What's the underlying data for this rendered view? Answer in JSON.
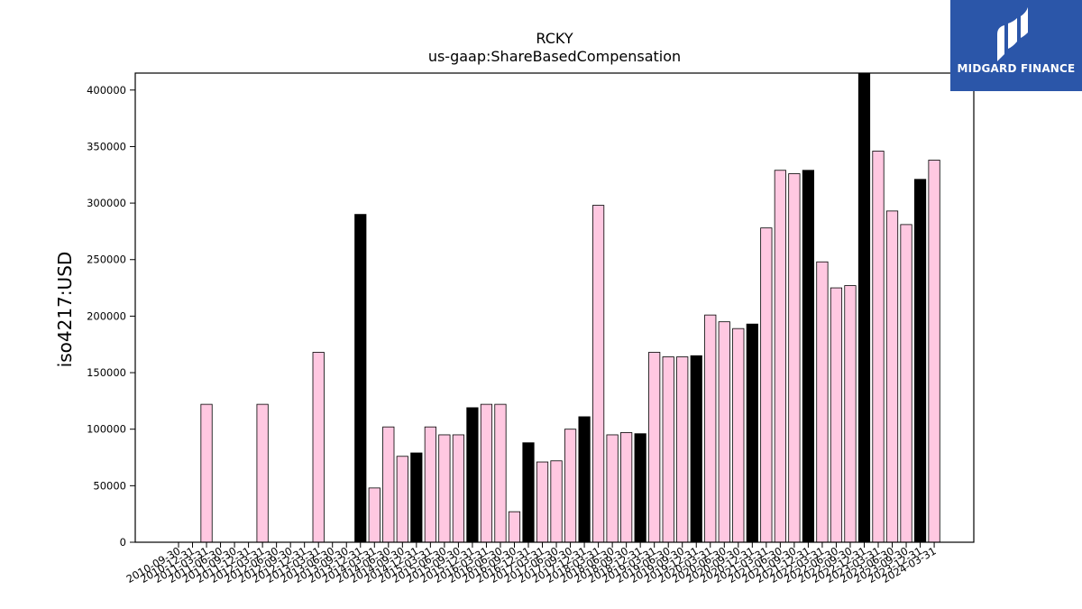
{
  "chart_data": {
    "type": "bar",
    "title": "RCKY",
    "subtitle": "us-gaap:ShareBasedCompensation",
    "xlabel": "",
    "ylabel": "iso4217:USD",
    "ylim": [
      0,
      415000
    ],
    "yticks": [
      0,
      50000,
      100000,
      150000,
      200000,
      250000,
      300000,
      350000,
      400000
    ],
    "grid": false,
    "colors": {
      "quarter": "#ffc8e1",
      "fiscal_year_end": "#000000",
      "edge": "#000000"
    },
    "bars": [
      {
        "date": "2010-09-30",
        "value": 0,
        "annual": false
      },
      {
        "date": "2010-12-31",
        "value": 0,
        "annual": false
      },
      {
        "date": "2011-03-31",
        "value": 122000,
        "annual": false
      },
      {
        "date": "2011-06-30",
        "value": 0,
        "annual": false
      },
      {
        "date": "2011-09-30",
        "value": 0,
        "annual": false
      },
      {
        "date": "2011-12-31",
        "value": 0,
        "annual": false
      },
      {
        "date": "2012-03-31",
        "value": 122000,
        "annual": false
      },
      {
        "date": "2012-06-30",
        "value": 0,
        "annual": false
      },
      {
        "date": "2012-09-30",
        "value": 0,
        "annual": false
      },
      {
        "date": "2012-12-31",
        "value": 0,
        "annual": false
      },
      {
        "date": "2013-03-31",
        "value": 168000,
        "annual": false
      },
      {
        "date": "2013-06-30",
        "value": 0,
        "annual": false
      },
      {
        "date": "2013-09-30",
        "value": 0,
        "annual": false
      },
      {
        "date": "2013-12-31",
        "value": 290000,
        "annual": true
      },
      {
        "date": "2014-03-31",
        "value": 48000,
        "annual": false
      },
      {
        "date": "2014-06-30",
        "value": 102000,
        "annual": false
      },
      {
        "date": "2014-09-30",
        "value": 76000,
        "annual": false
      },
      {
        "date": "2014-12-31",
        "value": 79000,
        "annual": true
      },
      {
        "date": "2015-03-31",
        "value": 102000,
        "annual": false
      },
      {
        "date": "2015-06-30",
        "value": 95000,
        "annual": false
      },
      {
        "date": "2015-09-30",
        "value": 95000,
        "annual": false
      },
      {
        "date": "2015-12-31",
        "value": 119000,
        "annual": true
      },
      {
        "date": "2016-03-31",
        "value": 122000,
        "annual": false
      },
      {
        "date": "2016-06-30",
        "value": 122000,
        "annual": false
      },
      {
        "date": "2016-09-30",
        "value": 27000,
        "annual": false
      },
      {
        "date": "2016-12-31",
        "value": 88000,
        "annual": true
      },
      {
        "date": "2017-03-31",
        "value": 71000,
        "annual": false
      },
      {
        "date": "2017-06-30",
        "value": 72000,
        "annual": false
      },
      {
        "date": "2017-09-30",
        "value": 100000,
        "annual": false
      },
      {
        "date": "2017-12-31",
        "value": 111000,
        "annual": true
      },
      {
        "date": "2018-03-31",
        "value": 298000,
        "annual": false
      },
      {
        "date": "2018-06-30",
        "value": 95000,
        "annual": false
      },
      {
        "date": "2018-09-30",
        "value": 97000,
        "annual": false
      },
      {
        "date": "2018-12-31",
        "value": 96000,
        "annual": true
      },
      {
        "date": "2019-03-31",
        "value": 168000,
        "annual": false
      },
      {
        "date": "2019-06-30",
        "value": 164000,
        "annual": false
      },
      {
        "date": "2019-09-30",
        "value": 164000,
        "annual": false
      },
      {
        "date": "2019-12-31",
        "value": 165000,
        "annual": true
      },
      {
        "date": "2020-03-31",
        "value": 201000,
        "annual": false
      },
      {
        "date": "2020-06-30",
        "value": 195000,
        "annual": false
      },
      {
        "date": "2020-09-30",
        "value": 189000,
        "annual": false
      },
      {
        "date": "2020-12-31",
        "value": 193000,
        "annual": true
      },
      {
        "date": "2021-03-31",
        "value": 278000,
        "annual": false
      },
      {
        "date": "2021-06-30",
        "value": 329000,
        "annual": false
      },
      {
        "date": "2021-09-30",
        "value": 326000,
        "annual": false
      },
      {
        "date": "2021-12-31",
        "value": 329000,
        "annual": true
      },
      {
        "date": "2022-03-31",
        "value": 248000,
        "annual": false
      },
      {
        "date": "2022-06-30",
        "value": 225000,
        "annual": false
      },
      {
        "date": "2022-09-30",
        "value": 227000,
        "annual": false
      },
      {
        "date": "2022-12-31",
        "value": 415000,
        "annual": true
      },
      {
        "date": "2023-03-31",
        "value": 346000,
        "annual": false
      },
      {
        "date": "2023-06-30",
        "value": 293000,
        "annual": false
      },
      {
        "date": "2023-09-30",
        "value": 281000,
        "annual": false
      },
      {
        "date": "2023-12-31",
        "value": 321000,
        "annual": true
      },
      {
        "date": "2024-03-31",
        "value": 338000,
        "annual": false
      }
    ]
  },
  "logo": {
    "text": "MIDGARD FINANCE",
    "color": "#2b56a9"
  }
}
